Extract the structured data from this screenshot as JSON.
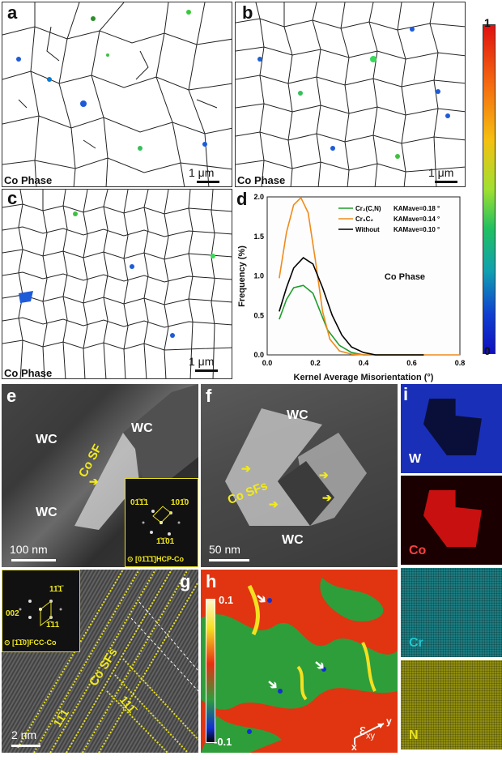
{
  "panels": {
    "a": {
      "label": "a",
      "phase": "Co Phase",
      "scale": "1 μm"
    },
    "b": {
      "label": "b",
      "phase": "Co Phase",
      "scale": "1 μm"
    },
    "c": {
      "label": "c",
      "phase": "Co Phase",
      "scale": "1 μm"
    },
    "colorbar": {
      "max": "1",
      "min": "0"
    },
    "d": {
      "label": "d",
      "annotation": "Co Phase"
    },
    "e": {
      "label": "e",
      "wc1": "WC",
      "wc2": "WC",
      "wc3": "WC",
      "sf": "Co SF",
      "scale": "100 nm",
      "fft": {
        "s1": "01̄1̄1",
        "s2": "101̄0",
        "s3": "1̄1̄01",
        "zone": "⊙ [01̄1̄1̄]HCP-Co"
      }
    },
    "f": {
      "label": "f",
      "wc1": "WC",
      "wc2": "WC",
      "sf": "Co SFs",
      "scale": "50 nm"
    },
    "g": {
      "label": "g",
      "sf": "Co SFs",
      "plane1": "11̄1",
      "plane2": "111̄",
      "scale": "2 nm",
      "fft": {
        "s1": "11̄1̄",
        "s2": "002",
        "s3": "1̄11",
        "zone": "⊙ [1̄1̄0]FCC-Co"
      }
    },
    "h": {
      "label": "h",
      "cmax": "0.1",
      "cmin": "-0.1",
      "strain": "ε",
      "strain_sub": "xy",
      "ax_x": "x",
      "ax_y": "y"
    },
    "i": {
      "label": "i",
      "maps": [
        {
          "name": "W",
          "color": "#1a2fb8"
        },
        {
          "name": "Co",
          "color": "#c81010"
        },
        {
          "name": "Cr",
          "color": "#1c7c80"
        },
        {
          "name": "N",
          "color": "#8f8d10"
        }
      ]
    }
  },
  "chart_data": {
    "type": "line",
    "title": "",
    "xlabel": "Kernel Average Misorientation (°)",
    "ylabel": "Frequency (%)",
    "xlim": [
      0.0,
      0.8
    ],
    "ylim": [
      0.0,
      2.0
    ],
    "xticks": [
      0.0,
      0.2,
      0.4,
      0.6,
      0.8
    ],
    "yticks": [
      0.0,
      0.5,
      1.0,
      1.5,
      2.0
    ],
    "legend_location": "top-right",
    "series": [
      {
        "name": "Cr₂(C,N)",
        "kam": "KAMave=0.18 °",
        "color": "#1e9e2c",
        "x": [
          0.05,
          0.08,
          0.11,
          0.15,
          0.19,
          0.22,
          0.25,
          0.3,
          0.35,
          0.4,
          0.45,
          0.5,
          0.55,
          0.6,
          0.65
        ],
        "y": [
          0.45,
          0.7,
          0.85,
          0.88,
          0.78,
          0.55,
          0.32,
          0.12,
          0.03,
          0.0,
          0.0,
          0.0,
          0.0,
          0.0,
          0.0
        ]
      },
      {
        "name": "Cr₃C₂",
        "kam": "KAMave=0.14 °",
        "color": "#f08a1c",
        "x": [
          0.05,
          0.08,
          0.11,
          0.14,
          0.17,
          0.2,
          0.23,
          0.26,
          0.3,
          0.35,
          0.4,
          0.45,
          0.5,
          0.6,
          0.7,
          0.8
        ],
        "y": [
          0.97,
          1.55,
          1.9,
          1.99,
          1.8,
          1.2,
          0.55,
          0.2,
          0.05,
          0.01,
          0.0,
          0.0,
          0.0,
          0.0,
          0.0,
          0.0
        ]
      },
      {
        "name": "Without",
        "kam": "KAMave=0.10 °",
        "color": "#000000",
        "x": [
          0.05,
          0.08,
          0.11,
          0.15,
          0.19,
          0.23,
          0.27,
          0.31,
          0.35,
          0.4,
          0.45,
          0.5,
          0.55,
          0.6,
          0.65
        ],
        "y": [
          0.55,
          0.85,
          1.1,
          1.23,
          1.15,
          0.85,
          0.5,
          0.25,
          0.1,
          0.03,
          0.0,
          0.0,
          0.0,
          0.0,
          0.0
        ]
      }
    ]
  }
}
